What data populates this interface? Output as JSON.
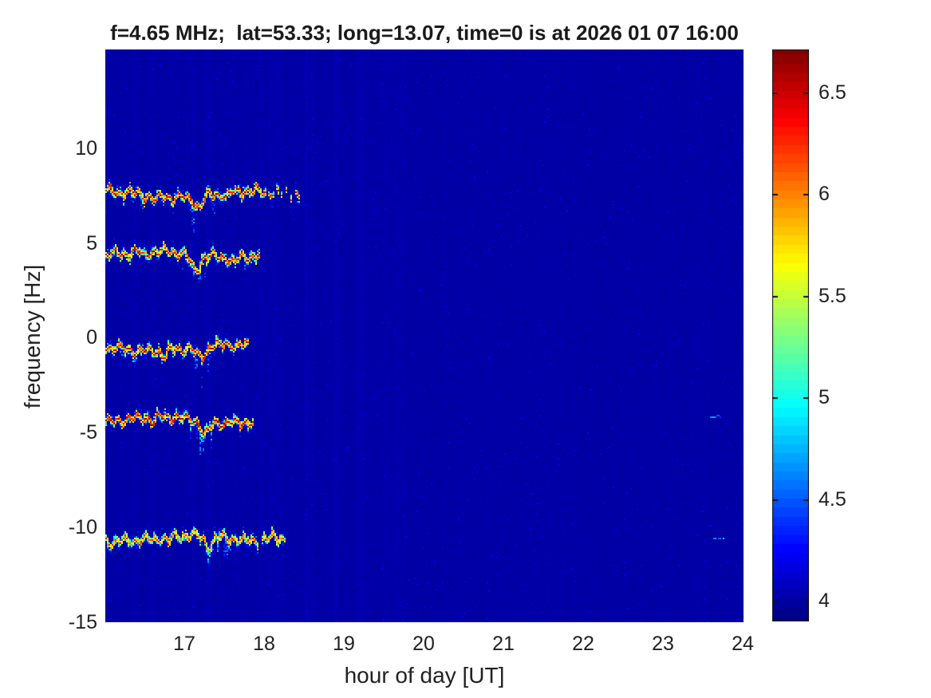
{
  "title": "f=4.65 MHz;  lat=53.33; long=13.07, time=0 is at 2026 01 07 16:00",
  "axes": {
    "xlabel": "hour of day [UT]",
    "ylabel": "frequency [Hz]",
    "x_ticks": [
      {
        "label": "17",
        "value": 17
      },
      {
        "label": "18",
        "value": 18
      },
      {
        "label": "19",
        "value": 19
      },
      {
        "label": "20",
        "value": 20
      },
      {
        "label": "21",
        "value": 21
      },
      {
        "label": "22",
        "value": 22
      },
      {
        "label": "23",
        "value": 23
      },
      {
        "label": "24",
        "value": 24
      }
    ],
    "y_ticks": [
      {
        "label": "10",
        "value": 10
      },
      {
        "label": "5",
        "value": 5
      },
      {
        "label": "0",
        "value": 0
      },
      {
        "label": "-5",
        "value": -5
      },
      {
        "label": "-10",
        "value": -10
      },
      {
        "label": "-15",
        "value": -15
      }
    ],
    "xlim": [
      16.01,
      24.01
    ],
    "ylim": [
      -15,
      15.2
    ]
  },
  "colorbar": {
    "colormap": "jet",
    "range": [
      3.9,
      6.71
    ],
    "ticks": [
      {
        "label": "4",
        "value": 4
      },
      {
        "label": "4.5",
        "value": 4.5
      },
      {
        "label": "5",
        "value": 5
      },
      {
        "label": "5.5",
        "value": 5.5
      },
      {
        "label": "6",
        "value": 6
      },
      {
        "label": "6.5",
        "value": 6.5
      }
    ]
  },
  "colors": {
    "text": "#212121",
    "figure_background": "#ffffff",
    "heatmap_low": "#00008f",
    "heatmap_high": "#7f0000"
  },
  "chart_data": {
    "type": "heatmap",
    "title": "f=4.65 MHz;  lat=53.33; long=13.07, time=0 is at 2026 01 07 16:00",
    "xlabel": "hour of day [UT]",
    "ylabel": "frequency [Hz]",
    "xlim": [
      16.01,
      24.01
    ],
    "ylim": [
      -15,
      15.2
    ],
    "color_range": [
      3.9,
      6.71
    ],
    "colormap": "jet",
    "grid": false,
    "legend": "colorbar-right",
    "background_value": 3.97,
    "noise_amplitude": 0.05,
    "striation_zone": {
      "hours": [
        18.45,
        19.75
      ],
      "strength": 0.09
    },
    "traces": [
      {
        "center_hz": 7.6,
        "core_value": 6.55,
        "segments": [
          [
            16.02,
            18.0
          ],
          [
            18.06,
            18.2
          ],
          [
            18.27,
            18.42
          ]
        ],
        "segment_density": [
          1,
          0.75,
          0.5
        ],
        "dips": [
          {
            "t": 17.18,
            "w": 0.1,
            "d": 0.55
          },
          {
            "t": 16.62,
            "w": 0.06,
            "d": 0.25
          },
          {
            "t": 17.52,
            "w": 0.05,
            "d": 0.2
          }
        ],
        "tails": [
          [
            17.05,
            17.42,
            1.6
          ],
          [
            16.28,
            16.5,
            0.8
          ]
        ]
      },
      {
        "center_hz": 4.45,
        "core_value": 6.5,
        "segments": [
          [
            16.02,
            17.93
          ]
        ],
        "segment_density": [
          1
        ],
        "dips": [
          {
            "t": 17.13,
            "w": 0.11,
            "d": 0.8
          },
          {
            "t": 16.5,
            "w": 0.06,
            "d": 0.3
          },
          {
            "t": 17.62,
            "w": 0.07,
            "d": 0.3
          }
        ],
        "tails": [
          [
            16.9,
            17.3,
            1.2
          ],
          [
            17.72,
            17.93,
            0.9
          ]
        ]
      },
      {
        "center_hz": -0.5,
        "core_value": 6.6,
        "segments": [
          [
            16.02,
            17.79
          ]
        ],
        "segment_density": [
          1
        ],
        "dips": [
          {
            "t": 17.2,
            "w": 0.12,
            "d": 0.6
          },
          {
            "t": 16.75,
            "w": 0.06,
            "d": 0.3
          }
        ],
        "tails": [
          [
            17.05,
            17.45,
            1.5
          ],
          [
            16.2,
            16.45,
            0.7
          ]
        ]
      },
      {
        "center_hz": -4.3,
        "core_value": 6.65,
        "segments": [
          [
            16.02,
            17.84
          ]
        ],
        "segment_density": [
          1
        ],
        "dips": [
          {
            "t": 17.26,
            "w": 0.1,
            "d": 0.75
          },
          {
            "t": 16.6,
            "w": 0.05,
            "d": 0.3
          }
        ],
        "tails": [
          [
            17.05,
            17.5,
            1.6
          ],
          [
            16.3,
            16.5,
            0.6
          ]
        ]
      },
      {
        "center_hz": -10.55,
        "core_value": 6.3,
        "segments": [
          [
            16.02,
            17.9
          ],
          [
            17.98,
            18.24
          ]
        ],
        "segment_density": [
          1,
          0.9
        ],
        "dips": [
          {
            "t": 17.3,
            "w": 0.1,
            "d": 0.5
          },
          {
            "t": 16.8,
            "w": 0.06,
            "d": 0.3
          },
          {
            "t": 18.12,
            "w": 0.2,
            "d": -0.22
          }
        ],
        "tails": [
          [
            17.25,
            17.6,
            1.3
          ]
        ]
      }
    ],
    "specks": [
      {
        "hour": 23.66,
        "hz": -4.05,
        "value": 4.7
      },
      {
        "hour": 23.7,
        "hz": -10.55,
        "value": 4.8
      }
    ]
  }
}
